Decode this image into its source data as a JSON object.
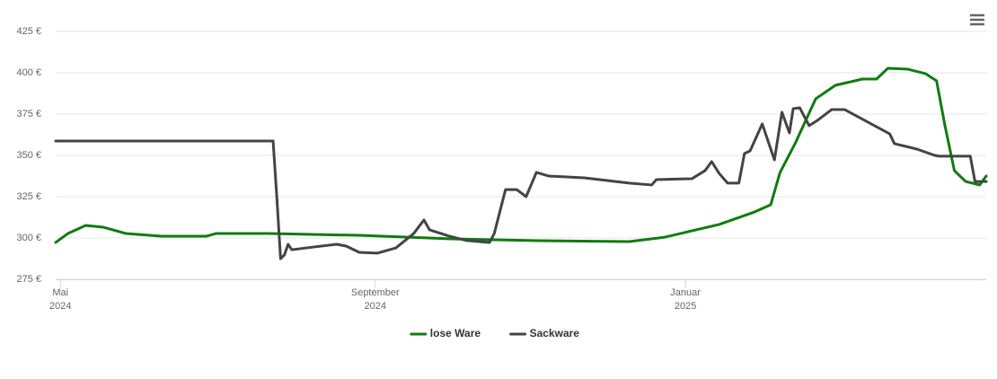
{
  "chart_data": {
    "type": "line",
    "xlim": [
      2024.328,
      2025.321
    ],
    "xticks": [
      {
        "value": 2024.333,
        "label": "Mai\n2024"
      },
      {
        "value": 2024.669,
        "label": "September\n2024"
      },
      {
        "value": 2025.0,
        "label": "Januar\n2025"
      }
    ],
    "ylim": [
      275,
      425
    ],
    "yticks": [
      {
        "value": 275,
        "label": "275 €"
      },
      {
        "value": 300,
        "label": "300 €"
      },
      {
        "value": 325,
        "label": "325 €"
      },
      {
        "value": 350,
        "label": "350 €"
      },
      {
        "value": 375,
        "label": "375 €"
      },
      {
        "value": 400,
        "label": "400 €"
      },
      {
        "value": 425,
        "label": "425 €"
      }
    ],
    "grid": true,
    "series": [
      {
        "name": "lose Ware",
        "color": "#0f7c0f",
        "x": [
          2024.328,
          2024.341,
          2024.36,
          2024.379,
          2024.403,
          2024.441,
          2024.489,
          2024.499,
          2024.556,
          2024.652,
          2024.748,
          2024.844,
          2024.94,
          2024.978,
          2025.036,
          2025.074,
          2025.091,
          2025.101,
          2025.117,
          2025.139,
          2025.16,
          2025.189,
          2025.204,
          2025.216,
          2025.237,
          2025.256,
          2025.268,
          2025.277,
          2025.287,
          2025.299,
          2025.314,
          2025.321
        ],
        "values": [
          297.3,
          302.7,
          307.6,
          306.5,
          302.7,
          301.1,
          301.1,
          302.7,
          302.7,
          301.6,
          299.5,
          298.4,
          297.8,
          300.5,
          308.2,
          315.8,
          320.1,
          339.7,
          357.1,
          384.2,
          392.4,
          396.2,
          396.2,
          402.7,
          402.2,
          399.5,
          395.1,
          367.9,
          340.8,
          334.2,
          332.1,
          337.5
        ]
      },
      {
        "name": "Sackware",
        "color": "#444444",
        "x": [
          2024.328,
          2024.56,
          2024.564,
          2024.568,
          2024.572,
          2024.576,
          2024.58,
          2024.604,
          2024.628,
          2024.638,
          2024.652,
          2024.671,
          2024.691,
          2024.71,
          2024.721,
          2024.727,
          2024.748,
          2024.767,
          2024.791,
          2024.796,
          2024.808,
          2024.82,
          2024.83,
          2024.841,
          2024.854,
          2024.892,
          2024.94,
          2024.964,
          2024.969,
          2025.007,
          2025.021,
          2025.028,
          2025.036,
          2025.045,
          2025.057,
          2025.063,
          2025.069,
          2025.082,
          2025.095,
          2025.103,
          2025.111,
          2025.115,
          2025.122,
          2025.132,
          2025.141,
          2025.156,
          2025.17,
          2025.218,
          2025.223,
          2025.247,
          2025.266,
          2025.271,
          2025.304,
          2025.309,
          2025.321
        ],
        "values": [
          358.7,
          358.7,
          324.5,
          287.5,
          289.7,
          296.2,
          292.9,
          294.6,
          296.2,
          295.1,
          291.3,
          290.8,
          294.0,
          302.7,
          310.9,
          304.9,
          301.1,
          298.4,
          297.3,
          302.7,
          329.3,
          329.3,
          325.0,
          339.7,
          337.5,
          336.4,
          333.2,
          332.1,
          335.3,
          335.9,
          340.8,
          346.2,
          339.1,
          333.2,
          333.2,
          351.1,
          352.7,
          369.0,
          347.3,
          376.1,
          363.6,
          378.3,
          378.8,
          368.0,
          371.2,
          377.7,
          377.7,
          363.0,
          357.1,
          353.8,
          350.0,
          349.5,
          349.5,
          334.2,
          334.2
        ]
      }
    ]
  }
}
